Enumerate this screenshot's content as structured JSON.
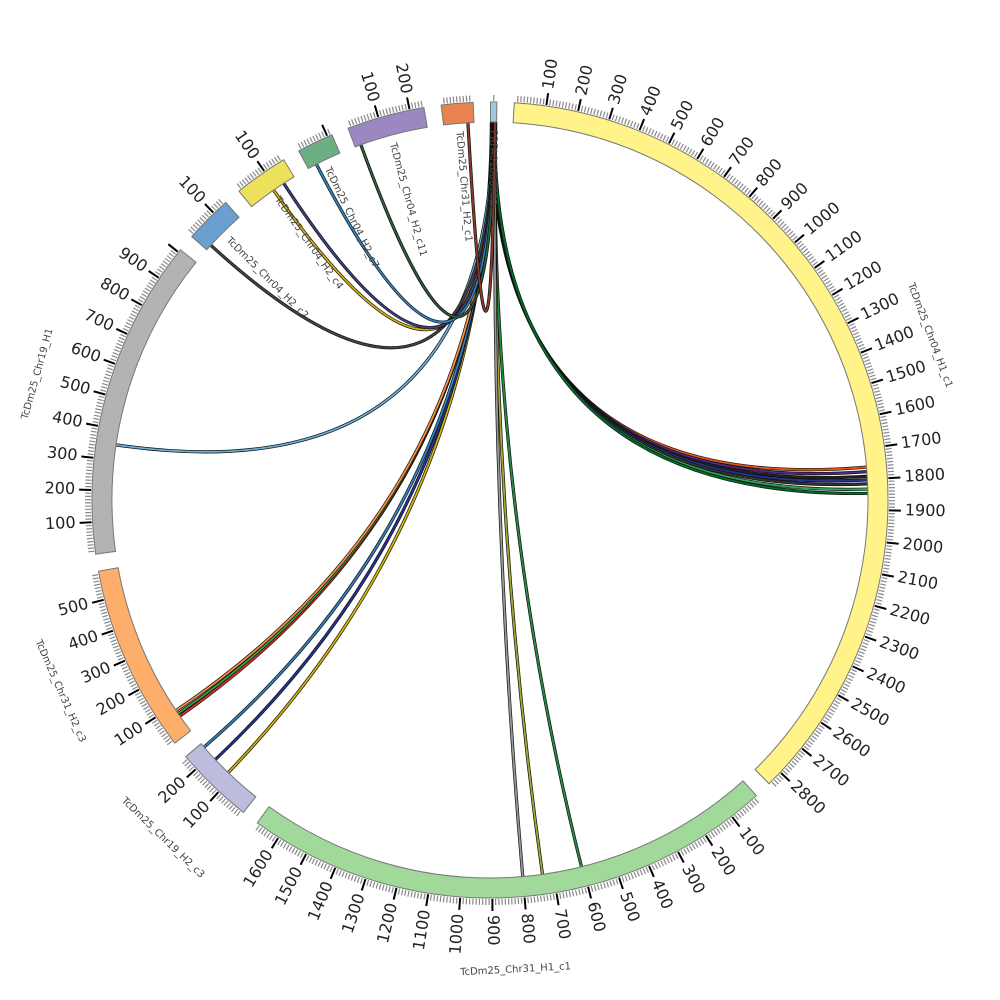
{
  "diagram": {
    "type": "circos-chord",
    "tick_major_units": 100,
    "tick_minor_units": 10
  },
  "segments": [
    {
      "name": "TcDm25_Chr04_H1_c1",
      "length": 2850,
      "color": "#fff38a"
    },
    {
      "name": "TcDm25_Chr31_H1_c1",
      "length": 1680,
      "color": "#a1d99b"
    },
    {
      "name": "TcDm25_Chr19_H2_c3",
      "length": 250,
      "color": "#bcbddc"
    },
    {
      "name": "TcDm25_Chr31_H2_c3",
      "length": 590,
      "color": "#fdae6b"
    },
    {
      "name": "TcDm25_Chr19_H1",
      "length": 1010,
      "color": "#b3b3b3"
    },
    {
      "name": "TcDm25_Chr04_H2_c2",
      "length": 150,
      "color": "#6a9fcf"
    },
    {
      "name": "TcDm25_Chr04_H2_c4",
      "length": 170,
      "color": "#ede15b"
    },
    {
      "name": "TcDm25_Chr04_H2_c7",
      "length": 115,
      "color": "#6baf83"
    },
    {
      "name": "TcDm25_Chr04_H2_c11",
      "length": 245,
      "color": "#9c88c0"
    },
    {
      "name": "TcDm25_Chr31_H2_c1",
      "length": 100,
      "color": "#e8824f"
    },
    {
      "name": "PRFA01000702",
      "length": 20,
      "color": "#9ecae1"
    }
  ],
  "links": [
    {
      "from": 10,
      "from_pos": 4,
      "to": 0,
      "to_pos": 1760,
      "color": "#e6550d"
    },
    {
      "from": 10,
      "from_pos": 6,
      "to": 0,
      "to_pos": 1775,
      "color": "#54278f"
    },
    {
      "from": 10,
      "from_pos": 8,
      "to": 0,
      "to_pos": 1790,
      "color": "#222222"
    },
    {
      "from": 10,
      "from_pos": 9,
      "to": 0,
      "to_pos": 1802,
      "color": "#253494"
    },
    {
      "from": 10,
      "from_pos": 10,
      "to": 0,
      "to_pos": 1815,
      "color": "#333333"
    },
    {
      "from": 10,
      "from_pos": 12,
      "to": 0,
      "to_pos": 1832,
      "color": "#31a354"
    },
    {
      "from": 10,
      "from_pos": 14,
      "to": 0,
      "to_pos": 1846,
      "color": "#006d2c"
    },
    {
      "from": 10,
      "from_pos": 15,
      "to": 1,
      "to_pos": 605,
      "color": "#238b45"
    },
    {
      "from": 10,
      "from_pos": 16,
      "to": 1,
      "to_pos": 735,
      "color": "#a6a635"
    },
    {
      "from": 10,
      "from_pos": 17,
      "to": 1,
      "to_pos": 800,
      "color": "#999999"
    },
    {
      "from": 10,
      "from_pos": 3,
      "to": 2,
      "to_pos": 120,
      "color": "#d4b106"
    },
    {
      "from": 10,
      "from_pos": 5,
      "to": 2,
      "to_pos": 180,
      "color": "#253494"
    },
    {
      "from": 10,
      "from_pos": 7,
      "to": 2,
      "to_pos": 235,
      "color": "#3182bd"
    },
    {
      "from": 10,
      "from_pos": 11,
      "to": 3,
      "to_pos": 60,
      "color": "#de2d26"
    },
    {
      "from": 10,
      "from_pos": 13,
      "to": 3,
      "to_pos": 70,
      "color": "#31a354"
    },
    {
      "from": 10,
      "from_pos": 12,
      "to": 3,
      "to_pos": 82,
      "color": "#fd8d3c"
    },
    {
      "from": 4,
      "from_pos": 350,
      "to": 10,
      "to_pos": 9,
      "color": "#6baed6"
    },
    {
      "from": 5,
      "from_pos": 20,
      "to": 10,
      "to_pos": 10,
      "color": "#444444"
    },
    {
      "from": 6,
      "from_pos": 90,
      "to": 10,
      "to_pos": 11,
      "color": "#d4b106"
    },
    {
      "from": 6,
      "from_pos": 130,
      "to": 10,
      "to_pos": 12,
      "color": "#3f3f7f"
    },
    {
      "from": 7,
      "from_pos": 30,
      "to": 10,
      "to_pos": 13,
      "color": "#3182bd"
    },
    {
      "from": 8,
      "from_pos": 20,
      "to": 10,
      "to_pos": 14,
      "color": "#2d5f3a"
    },
    {
      "from": 9,
      "from_pos": 80,
      "to": 10,
      "to_pos": 15,
      "color": "#8c3a2a"
    }
  ]
}
